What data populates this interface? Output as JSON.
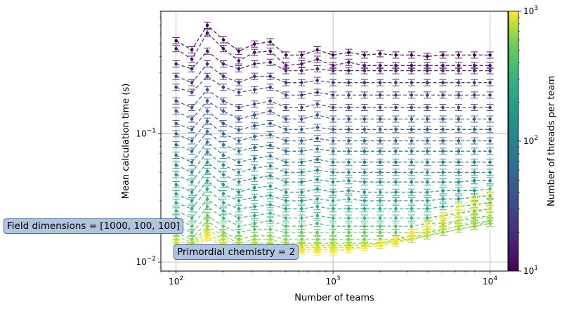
{
  "chart_data": {
    "type": "line",
    "xlabel": "Number of teams",
    "ylabel": "Mean calculation time (s)",
    "x_scale": "log",
    "y_scale": "log",
    "xlim": [
      80,
      13000
    ],
    "ylim": [
      0.0085,
      0.9
    ],
    "grid": true,
    "x_tick_labels": [
      {
        "value": 100,
        "base": "10",
        "exp": "2"
      },
      {
        "value": 1000,
        "base": "10",
        "exp": "3"
      },
      {
        "value": 10000,
        "base": "10",
        "exp": "4"
      }
    ],
    "y_tick_labels": [
      {
        "value": 0.01,
        "base": "10",
        "exp": "−2"
      },
      {
        "value": 0.1,
        "base": "10",
        "exp": "−1"
      }
    ],
    "x": [
      100,
      126,
      158,
      200,
      251,
      316,
      398,
      501,
      631,
      794,
      1000,
      1259,
      1585,
      1995,
      2512,
      3162,
      3981,
      5012,
      6310,
      7943,
      10000
    ],
    "colorbar": {
      "label": "Number of threads per team",
      "scale": "log",
      "range": [
        10,
        1000
      ],
      "colormap": "viridis",
      "tick_labels": [
        {
          "value": 10,
          "base": "10",
          "exp": "1"
        },
        {
          "value": 100,
          "base": "10",
          "exp": "2"
        },
        {
          "value": 1000,
          "base": "10",
          "exp": "3"
        }
      ]
    },
    "series_colors": [
      "#440154",
      "#471164",
      "#482071",
      "#472e7c",
      "#443a83",
      "#404688",
      "#3b528b",
      "#365d8d",
      "#31688e",
      "#2c728e",
      "#287c8e",
      "#24868e",
      "#21918c",
      "#1f9a8a",
      "#20a486",
      "#27ad81",
      "#35b779",
      "#47c16e",
      "#5ec962",
      "#75d054",
      "#90d743",
      "#addc30",
      "#c8e020",
      "#e3e418",
      "#fde725"
    ],
    "series": [
      {
        "values": [
          0.53,
          0.45,
          0.7,
          0.54,
          0.44,
          0.5,
          0.52,
          0.41,
          0.41,
          0.45,
          0.41,
          0.43,
          0.41,
          0.42,
          0.41,
          0.41,
          0.4,
          0.41,
          0.41,
          0.41,
          0.41
        ]
      },
      {
        "values": [
          0.46,
          0.38,
          0.61,
          0.46,
          0.37,
          0.43,
          0.44,
          0.34,
          0.35,
          0.38,
          0.34,
          0.36,
          0.34,
          0.34,
          0.34,
          0.34,
          0.34,
          0.34,
          0.34,
          0.34,
          0.34
        ]
      },
      {
        "values": [
          0.35,
          0.32,
          0.44,
          0.35,
          0.32,
          0.35,
          0.36,
          0.31,
          0.31,
          0.32,
          0.31,
          0.31,
          0.31,
          0.31,
          0.31,
          0.31,
          0.31,
          0.31,
          0.31,
          0.31,
          0.31
        ]
      },
      {
        "values": [
          0.28,
          0.25,
          0.35,
          0.28,
          0.25,
          0.28,
          0.28,
          0.25,
          0.25,
          0.26,
          0.25,
          0.25,
          0.25,
          0.25,
          0.25,
          0.25,
          0.25,
          0.25,
          0.25,
          0.25,
          0.25
        ]
      },
      {
        "values": [
          0.23,
          0.21,
          0.28,
          0.23,
          0.21,
          0.22,
          0.23,
          0.2,
          0.2,
          0.21,
          0.2,
          0.2,
          0.2,
          0.2,
          0.2,
          0.2,
          0.2,
          0.2,
          0.2,
          0.2,
          0.2
        ]
      },
      {
        "values": [
          0.18,
          0.16,
          0.22,
          0.18,
          0.16,
          0.17,
          0.18,
          0.16,
          0.16,
          0.17,
          0.16,
          0.16,
          0.16,
          0.16,
          0.16,
          0.16,
          0.16,
          0.16,
          0.16,
          0.16,
          0.16
        ]
      },
      {
        "values": [
          0.15,
          0.13,
          0.18,
          0.15,
          0.13,
          0.14,
          0.15,
          0.13,
          0.13,
          0.14,
          0.13,
          0.13,
          0.13,
          0.13,
          0.13,
          0.13,
          0.13,
          0.13,
          0.13,
          0.13,
          0.13
        ]
      },
      {
        "values": [
          0.12,
          0.108,
          0.15,
          0.12,
          0.107,
          0.115,
          0.12,
          0.108,
          0.108,
          0.112,
          0.108,
          0.108,
          0.108,
          0.108,
          0.108,
          0.108,
          0.108,
          0.108,
          0.108,
          0.108,
          0.108
        ]
      },
      {
        "values": [
          0.1,
          0.088,
          0.125,
          0.1,
          0.088,
          0.095,
          0.098,
          0.088,
          0.088,
          0.092,
          0.088,
          0.088,
          0.088,
          0.088,
          0.088,
          0.088,
          0.088,
          0.088,
          0.088,
          0.088,
          0.088
        ]
      },
      {
        "values": [
          0.082,
          0.073,
          0.104,
          0.082,
          0.073,
          0.078,
          0.081,
          0.073,
          0.073,
          0.076,
          0.073,
          0.073,
          0.073,
          0.073,
          0.073,
          0.073,
          0.073,
          0.073,
          0.073,
          0.073,
          0.073
        ]
      },
      {
        "values": [
          0.068,
          0.06,
          0.086,
          0.068,
          0.06,
          0.064,
          0.067,
          0.06,
          0.06,
          0.063,
          0.06,
          0.06,
          0.06,
          0.06,
          0.06,
          0.06,
          0.06,
          0.06,
          0.06,
          0.06,
          0.06
        ]
      },
      {
        "values": [
          0.057,
          0.05,
          0.072,
          0.057,
          0.05,
          0.054,
          0.056,
          0.05,
          0.05,
          0.052,
          0.05,
          0.05,
          0.05,
          0.05,
          0.05,
          0.05,
          0.05,
          0.05,
          0.05,
          0.05,
          0.05
        ]
      },
      {
        "values": [
          0.048,
          0.042,
          0.06,
          0.048,
          0.042,
          0.045,
          0.047,
          0.042,
          0.042,
          0.044,
          0.042,
          0.043,
          0.042,
          0.042,
          0.042,
          0.042,
          0.042,
          0.042,
          0.042,
          0.043,
          0.043
        ]
      },
      {
        "values": [
          0.04,
          0.035,
          0.051,
          0.04,
          0.035,
          0.038,
          0.039,
          0.035,
          0.035,
          0.037,
          0.035,
          0.036,
          0.035,
          0.035,
          0.035,
          0.035,
          0.035,
          0.036,
          0.036,
          0.036,
          0.037
        ]
      },
      {
        "values": [
          0.034,
          0.03,
          0.043,
          0.034,
          0.03,
          0.032,
          0.033,
          0.03,
          0.03,
          0.031,
          0.03,
          0.031,
          0.03,
          0.03,
          0.03,
          0.03,
          0.03,
          0.031,
          0.031,
          0.032,
          0.033
        ]
      },
      {
        "values": [
          0.029,
          0.026,
          0.037,
          0.029,
          0.026,
          0.027,
          0.028,
          0.026,
          0.026,
          0.027,
          0.026,
          0.026,
          0.026,
          0.026,
          0.026,
          0.026,
          0.026,
          0.027,
          0.027,
          0.028,
          0.029
        ]
      },
      {
        "values": [
          0.025,
          0.022,
          0.031,
          0.025,
          0.022,
          0.023,
          0.024,
          0.022,
          0.022,
          0.023,
          0.022,
          0.022,
          0.022,
          0.022,
          0.022,
          0.022,
          0.022,
          0.023,
          0.024,
          0.025,
          0.026
        ]
      },
      {
        "values": [
          0.022,
          0.019,
          0.027,
          0.022,
          0.019,
          0.02,
          0.021,
          0.019,
          0.019,
          0.02,
          0.019,
          0.019,
          0.019,
          0.019,
          0.019,
          0.019,
          0.02,
          0.02,
          0.021,
          0.022,
          0.023
        ]
      },
      {
        "values": [
          0.019,
          0.017,
          0.023,
          0.019,
          0.017,
          0.018,
          0.018,
          0.017,
          0.017,
          0.017,
          0.017,
          0.017,
          0.017,
          0.017,
          0.017,
          0.017,
          0.017,
          0.018,
          0.019,
          0.02,
          0.021
        ]
      },
      {
        "values": [
          0.017,
          0.015,
          0.021,
          0.017,
          0.015,
          0.016,
          0.016,
          0.015,
          0.015,
          0.015,
          0.015,
          0.015,
          0.015,
          0.015,
          0.015,
          0.016,
          0.016,
          0.017,
          0.018,
          0.019,
          0.02
        ]
      },
      {
        "values": [
          0.016,
          0.014,
          0.019,
          0.016,
          0.014,
          0.015,
          0.015,
          0.014,
          0.014,
          0.014,
          0.014,
          0.014,
          0.014,
          0.014,
          0.015,
          0.015,
          0.016,
          0.017,
          0.018,
          0.019,
          0.021
        ]
      },
      {
        "values": [
          0.015,
          0.0135,
          0.018,
          0.015,
          0.0135,
          0.014,
          0.014,
          0.0135,
          0.0135,
          0.0135,
          0.0135,
          0.0135,
          0.0135,
          0.014,
          0.0145,
          0.015,
          0.016,
          0.018,
          0.019,
          0.021,
          0.023
        ]
      },
      {
        "values": [
          0.014,
          0.013,
          0.017,
          0.014,
          0.013,
          0.0135,
          0.0135,
          0.013,
          0.013,
          0.013,
          0.013,
          0.013,
          0.013,
          0.0135,
          0.014,
          0.015,
          0.017,
          0.019,
          0.021,
          0.024,
          0.026
        ]
      },
      {
        "values": [
          0.0135,
          0.0125,
          0.016,
          0.0135,
          0.0125,
          0.013,
          0.013,
          0.0125,
          0.0125,
          0.0125,
          0.0125,
          0.0125,
          0.013,
          0.0135,
          0.0145,
          0.016,
          0.018,
          0.021,
          0.024,
          0.027,
          0.03
        ]
      },
      {
        "values": [
          0.013,
          0.012,
          0.0155,
          0.013,
          0.012,
          0.0125,
          0.0125,
          0.012,
          0.012,
          0.012,
          0.012,
          0.0125,
          0.013,
          0.014,
          0.015,
          0.017,
          0.02,
          0.023,
          0.027,
          0.031,
          0.035
        ]
      }
    ],
    "annotations": [
      {
        "text": "Field dimensions = [1000, 100, 100]"
      },
      {
        "text": "Primordial chemistry = 2"
      }
    ]
  }
}
